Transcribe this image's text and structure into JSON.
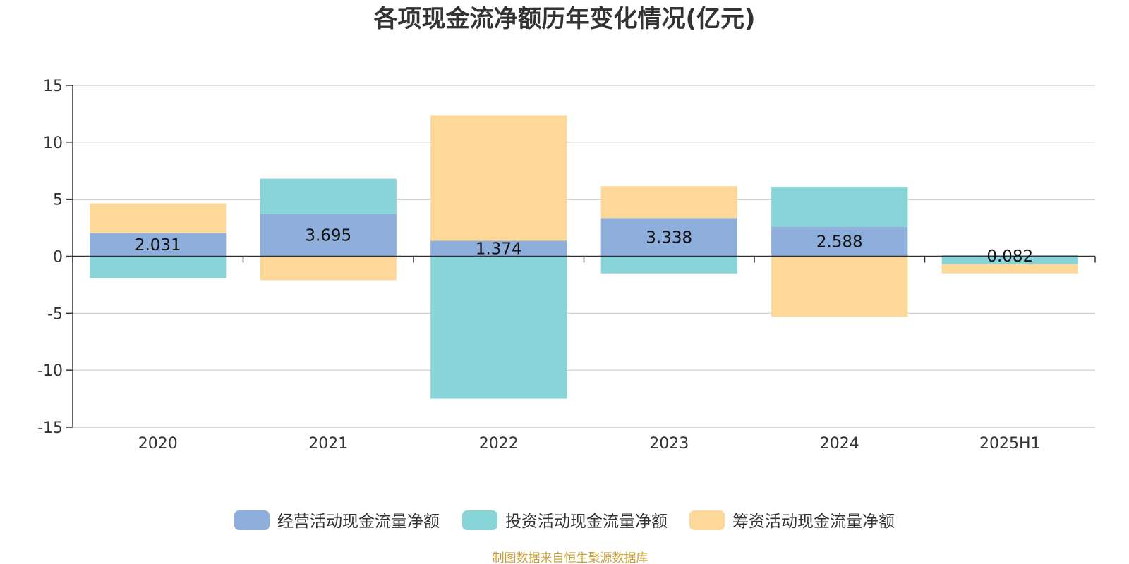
{
  "chart_data": {
    "type": "bar",
    "stacked": true,
    "title": "各项现金流净额历年变化情况(亿元)",
    "categories": [
      "2020",
      "2021",
      "2022",
      "2023",
      "2024",
      "2025H1"
    ],
    "series": [
      {
        "name": "经营活动现金流量净额",
        "color": "#8eaedb",
        "values": [
          2.031,
          3.695,
          1.374,
          3.338,
          2.588,
          0.082
        ]
      },
      {
        "name": "投资活动现金流量净额",
        "color": "#88d5d9",
        "values": [
          -1.9,
          3.1,
          -12.5,
          -1.5,
          3.5,
          -0.7
        ]
      },
      {
        "name": "筹资活动现金流量净额",
        "color": "#fed899",
        "values": [
          2.6,
          -2.1,
          11.0,
          2.8,
          -5.3,
          -0.8
        ]
      }
    ],
    "data_labels": [
      "2.031",
      "3.695",
      "1.374",
      "3.338",
      "2.588",
      "0.082"
    ],
    "yticks": [
      "15",
      "10",
      "5",
      "0",
      "-5",
      "-10",
      "-15"
    ],
    "ylim": [
      -15,
      15
    ],
    "grid": true,
    "legend": "bottom",
    "source": "制图数据来自恒生聚源数据库"
  }
}
